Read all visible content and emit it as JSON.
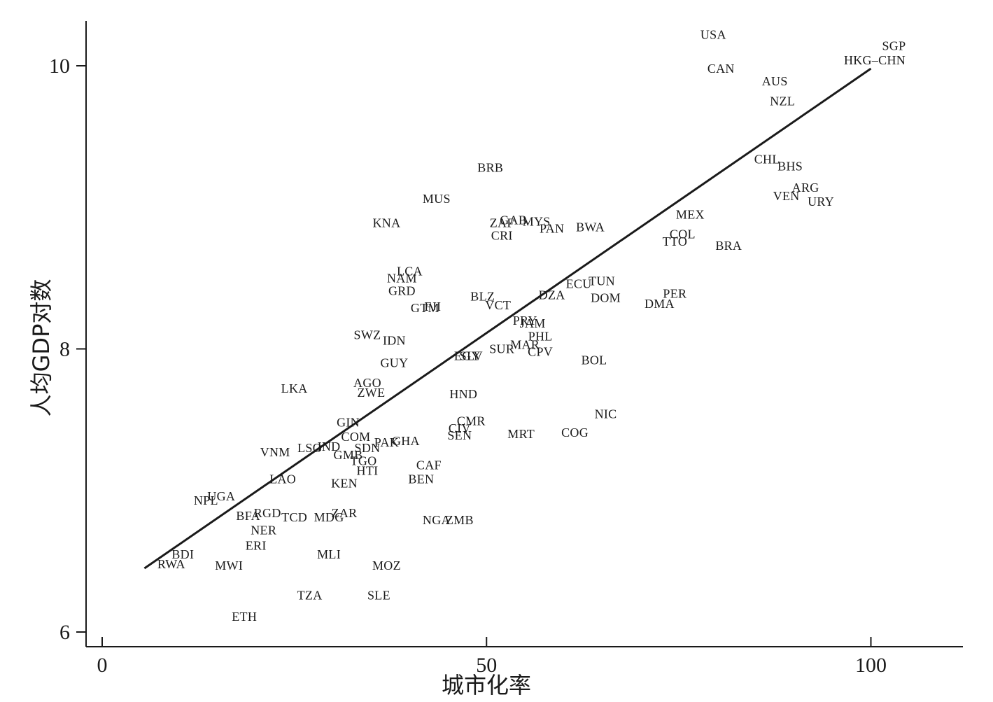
{
  "chart_data": {
    "type": "scatter",
    "title": "",
    "xlabel": "城市化率",
    "ylabel": "人均GDP对数",
    "xlim": [
      -2,
      112
    ],
    "ylim": [
      5.88,
      10.32
    ],
    "xticks": [
      0,
      50,
      100
    ],
    "yticks": [
      6,
      8,
      10
    ],
    "grid": false,
    "legend": "none",
    "points": [
      {
        "label": "USA",
        "x": 79.5,
        "y": 10.22
      },
      {
        "label": "CAN",
        "x": 80.5,
        "y": 9.98
      },
      {
        "label": "AUS",
        "x": 87.5,
        "y": 9.89
      },
      {
        "label": "NZL",
        "x": 88.5,
        "y": 9.75
      },
      {
        "label": "SGP",
        "x": 103.0,
        "y": 10.14
      },
      {
        "label": "HKG–CHN",
        "x": 100.5,
        "y": 10.04
      },
      {
        "label": "BRB",
        "x": 50.5,
        "y": 9.28
      },
      {
        "label": "MUS",
        "x": 43.5,
        "y": 9.06
      },
      {
        "label": "KNA",
        "x": 37.0,
        "y": 8.89
      },
      {
        "label": "ZAF",
        "x": 52.0,
        "y": 8.89
      },
      {
        "label": "GAB",
        "x": 53.5,
        "y": 8.91
      },
      {
        "label": "MYS",
        "x": 56.5,
        "y": 8.9
      },
      {
        "label": "CRI",
        "x": 52.0,
        "y": 8.8
      },
      {
        "label": "PAN",
        "x": 58.5,
        "y": 8.85
      },
      {
        "label": "BWA",
        "x": 63.5,
        "y": 8.86
      },
      {
        "label": "CHL",
        "x": 86.5,
        "y": 9.34
      },
      {
        "label": "BHS",
        "x": 89.5,
        "y": 9.29
      },
      {
        "label": "ARG",
        "x": 91.5,
        "y": 9.14
      },
      {
        "label": "VEN",
        "x": 89.0,
        "y": 9.08
      },
      {
        "label": "URY",
        "x": 93.5,
        "y": 9.04
      },
      {
        "label": "MEX",
        "x": 76.5,
        "y": 8.95
      },
      {
        "label": "COL",
        "x": 75.5,
        "y": 8.81
      },
      {
        "label": "TTO",
        "x": 74.5,
        "y": 8.76
      },
      {
        "label": "BRA",
        "x": 81.5,
        "y": 8.73
      },
      {
        "label": "LCA",
        "x": 40.0,
        "y": 8.55
      },
      {
        "label": "NAM",
        "x": 39.0,
        "y": 8.5
      },
      {
        "label": "GRD",
        "x": 39.0,
        "y": 8.41
      },
      {
        "label": "ECU",
        "x": 62.0,
        "y": 8.46
      },
      {
        "label": "TUN",
        "x": 65.0,
        "y": 8.48
      },
      {
        "label": "PER",
        "x": 74.5,
        "y": 8.39
      },
      {
        "label": "DMA",
        "x": 72.5,
        "y": 8.32
      },
      {
        "label": "BLZ",
        "x": 49.5,
        "y": 8.37
      },
      {
        "label": "VCT",
        "x": 51.5,
        "y": 8.31
      },
      {
        "label": "DZA",
        "x": 58.5,
        "y": 8.38
      },
      {
        "label": "DOM",
        "x": 65.5,
        "y": 8.36
      },
      {
        "label": "GTM",
        "x": 42.0,
        "y": 8.29
      },
      {
        "label": "FJI",
        "x": 43.0,
        "y": 8.3
      },
      {
        "label": "PRY",
        "x": 55.0,
        "y": 8.2
      },
      {
        "label": "JAM",
        "x": 56.0,
        "y": 8.18
      },
      {
        "label": "PHL",
        "x": 57.0,
        "y": 8.09
      },
      {
        "label": "MAR",
        "x": 55.0,
        "y": 8.03
      },
      {
        "label": "SUR",
        "x": 52.0,
        "y": 8.0
      },
      {
        "label": "CPV",
        "x": 57.0,
        "y": 7.98
      },
      {
        "label": "SWZ",
        "x": 34.5,
        "y": 8.1
      },
      {
        "label": "IDN",
        "x": 38.0,
        "y": 8.06
      },
      {
        "label": "GUY",
        "x": 38.0,
        "y": 7.9
      },
      {
        "label": "SLV",
        "x": 48.0,
        "y": 7.95
      },
      {
        "label": "EGY",
        "x": 47.5,
        "y": 7.95
      },
      {
        "label": "BOL",
        "x": 64.0,
        "y": 7.92
      },
      {
        "label": "LKA",
        "x": 25.0,
        "y": 7.72
      },
      {
        "label": "AGO",
        "x": 34.5,
        "y": 7.76
      },
      {
        "label": "ZWE",
        "x": 35.0,
        "y": 7.69
      },
      {
        "label": "HND",
        "x": 47.0,
        "y": 7.68
      },
      {
        "label": "NIC",
        "x": 65.5,
        "y": 7.54
      },
      {
        "label": "GIN",
        "x": 32.0,
        "y": 7.48
      },
      {
        "label": "CMR",
        "x": 48.0,
        "y": 7.49
      },
      {
        "label": "CIV",
        "x": 46.5,
        "y": 7.44
      },
      {
        "label": "SEN",
        "x": 46.5,
        "y": 7.39
      },
      {
        "label": "MRT",
        "x": 54.5,
        "y": 7.4
      },
      {
        "label": "COG",
        "x": 61.5,
        "y": 7.41
      },
      {
        "label": "COM",
        "x": 33.0,
        "y": 7.38
      },
      {
        "label": "PAK",
        "x": 37.0,
        "y": 7.34
      },
      {
        "label": "GHA",
        "x": 39.5,
        "y": 7.35
      },
      {
        "label": "IND",
        "x": 29.5,
        "y": 7.31
      },
      {
        "label": "LSO",
        "x": 27.0,
        "y": 7.3
      },
      {
        "label": "SDN",
        "x": 34.5,
        "y": 7.3
      },
      {
        "label": "GMB",
        "x": 32.0,
        "y": 7.25
      },
      {
        "label": "TGO",
        "x": 34.0,
        "y": 7.21
      },
      {
        "label": "VNM",
        "x": 22.5,
        "y": 7.27
      },
      {
        "label": "HTI",
        "x": 34.5,
        "y": 7.14
      },
      {
        "label": "CAF",
        "x": 42.5,
        "y": 7.18
      },
      {
        "label": "BEN",
        "x": 41.5,
        "y": 7.08
      },
      {
        "label": "LAO",
        "x": 23.5,
        "y": 7.08
      },
      {
        "label": "KEN",
        "x": 31.5,
        "y": 7.05
      },
      {
        "label": "UGA",
        "x": 15.5,
        "y": 6.96
      },
      {
        "label": "NPL",
        "x": 13.5,
        "y": 6.93
      },
      {
        "label": "RGD",
        "x": 21.5,
        "y": 6.84
      },
      {
        "label": "BFA",
        "x": 19.0,
        "y": 6.82
      },
      {
        "label": "TCD",
        "x": 25.0,
        "y": 6.81
      },
      {
        "label": "MDG",
        "x": 29.5,
        "y": 6.81
      },
      {
        "label": "ZAR",
        "x": 31.5,
        "y": 6.84
      },
      {
        "label": "NGA",
        "x": 43.5,
        "y": 6.79
      },
      {
        "label": "ZMB",
        "x": 46.5,
        "y": 6.79
      },
      {
        "label": "NER",
        "x": 21.0,
        "y": 6.72
      },
      {
        "label": "ERI",
        "x": 20.0,
        "y": 6.61
      },
      {
        "label": "BDI",
        "x": 10.5,
        "y": 6.55
      },
      {
        "label": "RWA",
        "x": 9.0,
        "y": 6.48
      },
      {
        "label": "MWI",
        "x": 16.5,
        "y": 6.47
      },
      {
        "label": "MLI",
        "x": 29.5,
        "y": 6.55
      },
      {
        "label": "MOZ",
        "x": 37.0,
        "y": 6.47
      },
      {
        "label": "TZA",
        "x": 27.0,
        "y": 6.26
      },
      {
        "label": "SLE",
        "x": 36.0,
        "y": 6.26
      },
      {
        "label": "ETH",
        "x": 18.5,
        "y": 6.11
      }
    ],
    "fit_line": {
      "x": [
        5.5,
        100
      ],
      "y": [
        6.45,
        9.98
      ]
    }
  }
}
